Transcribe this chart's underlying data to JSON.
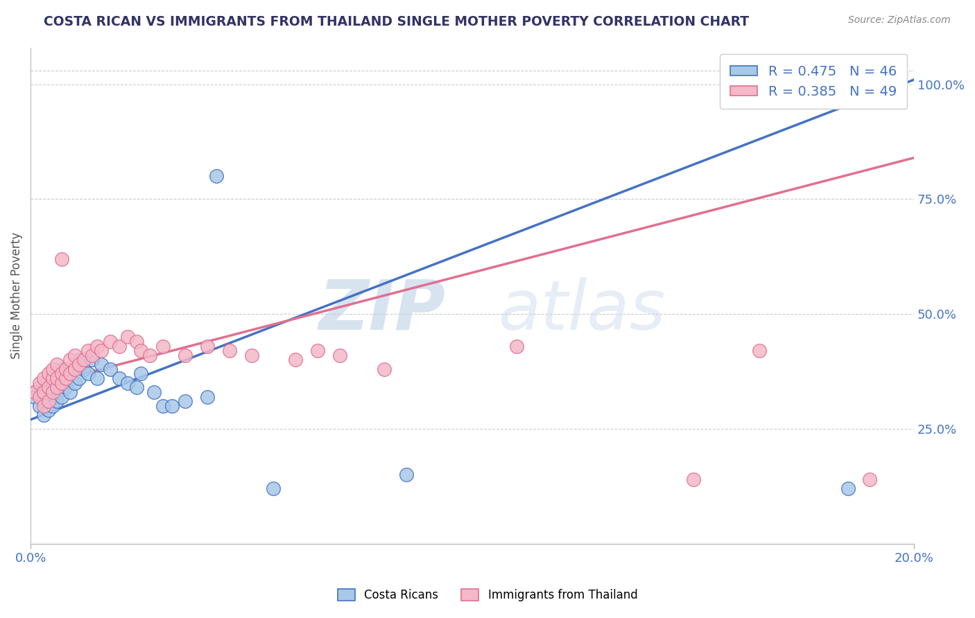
{
  "title": "COSTA RICAN VS IMMIGRANTS FROM THAILAND SINGLE MOTHER POVERTY CORRELATION CHART",
  "source": "Source: ZipAtlas.com",
  "xlabel": "",
  "ylabel": "Single Mother Poverty",
  "x_min": 0.0,
  "x_max": 0.2,
  "y_min": 0.0,
  "y_max": 1.08,
  "blue_label": "Costa Ricans",
  "pink_label": "Immigrants from Thailand",
  "blue_R": "0.475",
  "blue_N": "46",
  "pink_R": "0.385",
  "pink_N": "49",
  "blue_scatter_color": "#a8c8e8",
  "blue_edge_color": "#4472c4",
  "pink_scatter_color": "#f4b8c8",
  "pink_edge_color": "#e07090",
  "blue_line_color": "#4472c4",
  "pink_line_color": "#e07090",
  "blue_trend": [
    0.0,
    0.2,
    0.27,
    1.01
  ],
  "pink_trend": [
    0.0,
    0.2,
    0.34,
    0.84
  ],
  "blue_scatter": [
    [
      0.001,
      0.32
    ],
    [
      0.002,
      0.3
    ],
    [
      0.002,
      0.34
    ],
    [
      0.003,
      0.28
    ],
    [
      0.003,
      0.31
    ],
    [
      0.003,
      0.33
    ],
    [
      0.004,
      0.29
    ],
    [
      0.004,
      0.32
    ],
    [
      0.004,
      0.34
    ],
    [
      0.005,
      0.3
    ],
    [
      0.005,
      0.33
    ],
    [
      0.005,
      0.35
    ],
    [
      0.005,
      0.37
    ],
    [
      0.006,
      0.31
    ],
    [
      0.006,
      0.33
    ],
    [
      0.006,
      0.36
    ],
    [
      0.007,
      0.32
    ],
    [
      0.007,
      0.35
    ],
    [
      0.007,
      0.38
    ],
    [
      0.008,
      0.34
    ],
    [
      0.008,
      0.36
    ],
    [
      0.009,
      0.33
    ],
    [
      0.009,
      0.37
    ],
    [
      0.01,
      0.35
    ],
    [
      0.01,
      0.38
    ],
    [
      0.011,
      0.36
    ],
    [
      0.011,
      0.4
    ],
    [
      0.012,
      0.38
    ],
    [
      0.013,
      0.37
    ],
    [
      0.014,
      0.4
    ],
    [
      0.015,
      0.36
    ],
    [
      0.016,
      0.39
    ],
    [
      0.018,
      0.38
    ],
    [
      0.02,
      0.36
    ],
    [
      0.022,
      0.35
    ],
    [
      0.024,
      0.34
    ],
    [
      0.025,
      0.37
    ],
    [
      0.028,
      0.33
    ],
    [
      0.03,
      0.3
    ],
    [
      0.032,
      0.3
    ],
    [
      0.035,
      0.31
    ],
    [
      0.04,
      0.32
    ],
    [
      0.042,
      0.8
    ],
    [
      0.055,
      0.12
    ],
    [
      0.085,
      0.15
    ],
    [
      0.185,
      0.12
    ]
  ],
  "pink_scatter": [
    [
      0.001,
      0.33
    ],
    [
      0.002,
      0.32
    ],
    [
      0.002,
      0.35
    ],
    [
      0.003,
      0.3
    ],
    [
      0.003,
      0.33
    ],
    [
      0.003,
      0.36
    ],
    [
      0.004,
      0.31
    ],
    [
      0.004,
      0.34
    ],
    [
      0.004,
      0.37
    ],
    [
      0.005,
      0.33
    ],
    [
      0.005,
      0.36
    ],
    [
      0.005,
      0.38
    ],
    [
      0.006,
      0.34
    ],
    [
      0.006,
      0.36
    ],
    [
      0.006,
      0.39
    ],
    [
      0.007,
      0.35
    ],
    [
      0.007,
      0.37
    ],
    [
      0.007,
      0.62
    ],
    [
      0.008,
      0.36
    ],
    [
      0.008,
      0.38
    ],
    [
      0.009,
      0.37
    ],
    [
      0.009,
      0.4
    ],
    [
      0.01,
      0.38
    ],
    [
      0.01,
      0.41
    ],
    [
      0.011,
      0.39
    ],
    [
      0.012,
      0.4
    ],
    [
      0.013,
      0.42
    ],
    [
      0.014,
      0.41
    ],
    [
      0.015,
      0.43
    ],
    [
      0.016,
      0.42
    ],
    [
      0.018,
      0.44
    ],
    [
      0.02,
      0.43
    ],
    [
      0.022,
      0.45
    ],
    [
      0.024,
      0.44
    ],
    [
      0.025,
      0.42
    ],
    [
      0.027,
      0.41
    ],
    [
      0.03,
      0.43
    ],
    [
      0.035,
      0.41
    ],
    [
      0.04,
      0.43
    ],
    [
      0.045,
      0.42
    ],
    [
      0.05,
      0.41
    ],
    [
      0.06,
      0.4
    ],
    [
      0.065,
      0.42
    ],
    [
      0.07,
      0.41
    ],
    [
      0.08,
      0.38
    ],
    [
      0.11,
      0.43
    ],
    [
      0.15,
      0.14
    ],
    [
      0.165,
      0.42
    ],
    [
      0.19,
      0.14
    ]
  ],
  "yticks": [
    0.25,
    0.5,
    0.75,
    1.0
  ],
  "ytick_labels": [
    "25.0%",
    "50.0%",
    "75.0%",
    "100.0%"
  ],
  "xticks": [
    0.0,
    0.2
  ],
  "xtick_labels": [
    "0.0%",
    "20.0%"
  ],
  "watermark_zip": "ZIP",
  "watermark_atlas": "atlas",
  "background_color": "#ffffff",
  "grid_color": "#cccccc",
  "title_color": "#333366",
  "source_color": "#888888",
  "axis_label_color": "#555555",
  "tick_label_color": "#4472c4"
}
